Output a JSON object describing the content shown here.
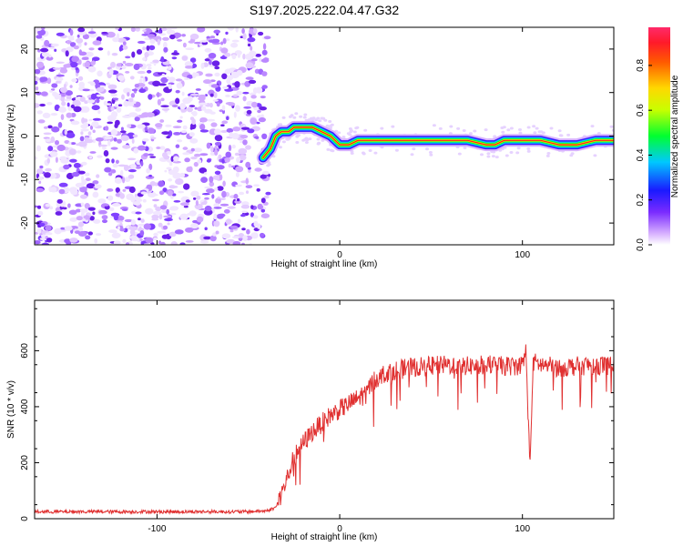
{
  "title": "S197.2025.222.04.47.G32",
  "chart_data": [
    {
      "type": "heatmap",
      "title": "S197.2025.222.04.47.G32",
      "xlabel": "Height of straight line (km)",
      "ylabel": "Frequency (Hz)",
      "xlim": [
        -167,
        150
      ],
      "ylim": [
        -25,
        25
      ],
      "x_ticks": [
        -100,
        0,
        100
      ],
      "y_ticks": [
        -20,
        -10,
        0,
        10,
        20
      ],
      "noise_region_x": [
        -167,
        -39
      ],
      "ridge": {
        "x": [
          -42,
          -38,
          -35,
          -32,
          -28,
          -25,
          -20,
          -15,
          -10,
          -5,
          0,
          5,
          10,
          20,
          40,
          60,
          70,
          80,
          85,
          90,
          95,
          100,
          105,
          110,
          120,
          130,
          140,
          150
        ],
        "frequency_hz": [
          -5,
          -3,
          0,
          1,
          1,
          2,
          2,
          2,
          1,
          0,
          -2,
          -2,
          -1,
          -1,
          -1,
          -1,
          -1,
          -2,
          -2,
          -1,
          -1,
          -1,
          -1,
          -1,
          -2,
          -2,
          -1,
          -1
        ]
      },
      "colorbar": {
        "label": "Normalized spectral amplitude",
        "range": [
          0,
          0.97
        ],
        "ticks": [
          0.0,
          0.2,
          0.4,
          0.6,
          0.8
        ]
      },
      "grid": false
    },
    {
      "type": "line",
      "title": "",
      "xlabel": "Height of straight line (km)",
      "ylabel": "SNR (10 * v/v)",
      "xlim": [
        -167,
        150
      ],
      "ylim": [
        0,
        780
      ],
      "x_ticks": [
        -100,
        0,
        100
      ],
      "y_ticks": [
        0,
        200,
        400,
        600
      ],
      "color": "#e03030",
      "series": [
        {
          "name": "SNR",
          "x": [
            -167,
            -150,
            -130,
            -110,
            -90,
            -70,
            -50,
            -40,
            -35,
            -30,
            -25,
            -20,
            -15,
            -10,
            -5,
            0,
            5,
            10,
            15,
            20,
            25,
            30,
            40,
            50,
            60,
            70,
            80,
            90,
            95,
            100,
            102,
            104,
            106,
            110,
            120,
            130,
            140,
            150
          ],
          "y": [
            25,
            25,
            25,
            25,
            25,
            25,
            25,
            28,
            40,
            120,
            220,
            270,
            310,
            340,
            370,
            390,
            410,
            430,
            460,
            500,
            520,
            530,
            540,
            545,
            550,
            545,
            550,
            545,
            545,
            550,
            600,
            190,
            560,
            550,
            540,
            545,
            550,
            545
          ]
        }
      ],
      "grid": false
    }
  ]
}
